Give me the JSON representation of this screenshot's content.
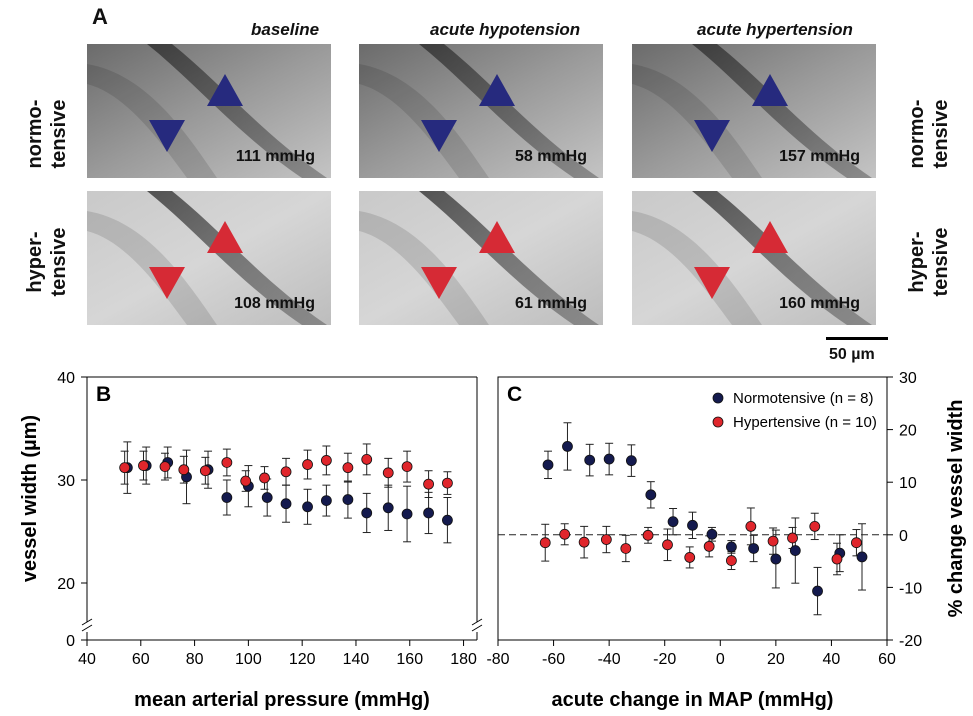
{
  "panel_a": {
    "letter": "A",
    "conditions": [
      "baseline",
      "acute hypotension",
      "acute hypertension"
    ],
    "rows": [
      {
        "label_line1": "normo-",
        "label_line2": "tensive",
        "marker_color": "#262a7e",
        "pressures": [
          "111 mmHg",
          "58 mmHg",
          "157 mmHg"
        ]
      },
      {
        "label_line1": "hyper-",
        "label_line2": "tensive",
        "marker_color": "#d62a35",
        "pressures": [
          "108 mmHg",
          "61 mmHg",
          "160 mmHg"
        ]
      }
    ],
    "scale_bar_label": "50 µm"
  },
  "colors": {
    "normotensive": "#141a4e",
    "hypertensive": "#e0262c"
  },
  "chart_data": [
    {
      "type": "scatter",
      "panel": "B",
      "xlabel": "mean arterial pressure (mmHg)",
      "ylabel": "vessel width (µm)",
      "xlim": [
        40,
        185
      ],
      "xticks": [
        40,
        60,
        80,
        100,
        120,
        140,
        160,
        180
      ],
      "yticks": [
        0,
        20,
        30,
        40
      ],
      "axis_break": "y between 0 and 18",
      "series": [
        {
          "key": "normotensive",
          "x": [
            55,
            62,
            70,
            77,
            85,
            92,
            100,
            107,
            114,
            122,
            129,
            137,
            144,
            152,
            159,
            167,
            174
          ],
          "y": [
            31.2,
            31.4,
            31.7,
            30.3,
            31.0,
            28.3,
            29.4,
            28.3,
            27.7,
            27.4,
            28.0,
            28.1,
            26.8,
            27.3,
            26.7,
            26.8,
            26.1
          ],
          "err": [
            2.5,
            1.8,
            1.5,
            2.6,
            1.8,
            1.7,
            2.0,
            1.8,
            1.8,
            1.7,
            1.5,
            1.8,
            1.9,
            2.2,
            2.7,
            2.0,
            2.2
          ]
        },
        {
          "key": "hypertensive",
          "x": [
            54,
            61,
            69,
            76,
            84,
            92,
            99,
            106,
            114,
            122,
            129,
            137,
            144,
            152,
            159,
            167,
            174
          ],
          "y": [
            31.2,
            31.4,
            31.3,
            31.0,
            30.9,
            31.7,
            29.9,
            30.2,
            30.8,
            31.5,
            31.9,
            31.2,
            32.0,
            30.7,
            31.3,
            29.6,
            29.7
          ],
          "err": [
            1.6,
            1.4,
            1.3,
            1.3,
            1.3,
            1.3,
            1.0,
            1.1,
            1.3,
            1.4,
            1.4,
            1.4,
            1.5,
            1.4,
            1.5,
            1.3,
            1.1
          ]
        }
      ]
    },
    {
      "type": "scatter",
      "panel": "C",
      "xlabel": "acute change in MAP (mmHg)",
      "ylabel": "% change vessel width",
      "xlim": [
        -80,
        60
      ],
      "ylim": [
        -20,
        30
      ],
      "xticks": [
        -80,
        -60,
        -40,
        -20,
        0,
        20,
        40,
        60
      ],
      "yticks": [
        -20,
        -10,
        0,
        10,
        20,
        30
      ],
      "reference_line": 0,
      "legend_position": "top-right",
      "series": [
        {
          "key": "normotensive",
          "name": "Normotensive (n = 8)",
          "x": [
            -62,
            -55,
            -47,
            -40,
            -32,
            -25,
            -17,
            -10,
            -3,
            4,
            12,
            20,
            27,
            35,
            43,
            51
          ],
          "y": [
            13.3,
            16.8,
            14.2,
            14.4,
            14.1,
            7.6,
            2.5,
            1.8,
            0.1,
            -2.3,
            -2.6,
            -4.6,
            -3.0,
            -10.7,
            -3.5,
            -4.2
          ],
          "err": [
            2.6,
            4.5,
            3.0,
            3.0,
            3.0,
            2.5,
            2.5,
            2.5,
            1.3,
            1.2,
            2.5,
            5.5,
            6.2,
            4.5,
            3.5,
            6.3
          ]
        },
        {
          "key": "hypertensive",
          "name": "Hypertensive (n = 10)",
          "x": [
            -63,
            -56,
            -49,
            -41,
            -34,
            -26,
            -19,
            -11,
            -4,
            4,
            11,
            19,
            26,
            34,
            42,
            49
          ],
          "y": [
            -1.5,
            0.1,
            -1.4,
            -0.9,
            -2.6,
            -0.1,
            -1.9,
            -4.3,
            -2.2,
            -4.9,
            1.6,
            -1.2,
            -0.6,
            1.6,
            -4.6,
            -1.5
          ],
          "err": [
            3.5,
            2.0,
            3.0,
            2.5,
            2.5,
            1.5,
            3.0,
            2.0,
            2.0,
            1.7,
            3.5,
            2.5,
            2.0,
            2.5,
            3.0,
            2.5
          ]
        }
      ]
    }
  ]
}
